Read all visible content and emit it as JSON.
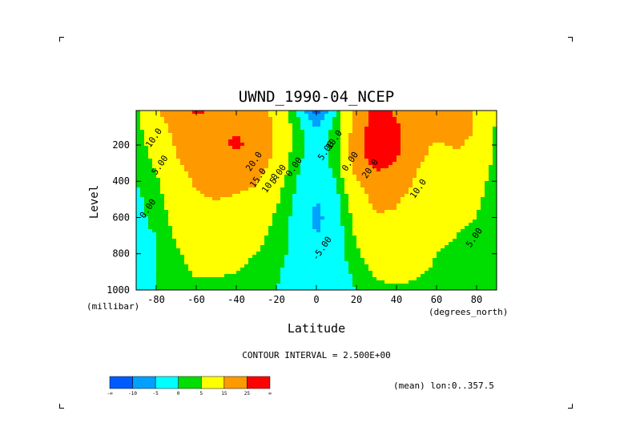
{
  "chart_data": {
    "type": "heatmap",
    "title": "UWND_1990-04_NCEP",
    "xlabel": "Latitude",
    "ylabel": "Level",
    "x_units": "(degrees_north)",
    "y_units": "(millibar)",
    "xlim": [
      -90,
      90
    ],
    "ylim": [
      1000,
      10
    ],
    "x_ticks": [
      "-80",
      "-60",
      "-40",
      "-20",
      "0",
      "20",
      "40",
      "60",
      "80"
    ],
    "y_ticks": [
      "200",
      "400",
      "600",
      "800",
      "1000"
    ],
    "contour_interval_text": "CONTOUR INTERVAL = 2.500E+00",
    "mean_text": "(mean) lon:0..357.5",
    "legend": {
      "labels": [
        "-∞",
        "-10",
        "-5",
        "0",
        "5",
        "15",
        "25",
        "∞"
      ],
      "colors": [
        "#005aff",
        "#00a0ff",
        "#00ffff",
        "#00dd00",
        "#ffff00",
        "#ff9900",
        "#ff0000"
      ]
    },
    "contour_labels": [
      {
        "text": "10.0",
        "lat": -80,
        "lev": 170
      },
      {
        "text": "5.00",
        "lat": -77,
        "lev": 320
      },
      {
        "text": "0.00",
        "lat": -83,
        "lev": 560
      },
      {
        "text": "20.0",
        "lat": -30,
        "lev": 300
      },
      {
        "text": "15.0",
        "lat": -28,
        "lev": 390
      },
      {
        "text": "10.0",
        "lat": -22,
        "lev": 420
      },
      {
        "text": "5.00",
        "lat": -18,
        "lev": 370
      },
      {
        "text": "0.00",
        "lat": -10,
        "lev": 330
      },
      {
        "text": "-5.00",
        "lat": 4,
        "lev": 780
      },
      {
        "text": "10.0",
        "lat": 10,
        "lev": 180
      },
      {
        "text": "5.00",
        "lat": 6,
        "lev": 240
      },
      {
        "text": "0.00",
        "lat": 18,
        "lev": 300
      },
      {
        "text": "20.0",
        "lat": 28,
        "lev": 340
      },
      {
        "text": "10.0",
        "lat": 52,
        "lev": 450
      },
      {
        "text": "5.00",
        "lat": 80,
        "lev": 720
      }
    ],
    "wind_field_m_per_s": {
      "lat": [
        -90,
        -80,
        -70,
        -60,
        -50,
        -40,
        -30,
        -20,
        -10,
        0,
        10,
        20,
        30,
        40,
        50,
        60,
        70,
        80,
        90
      ],
      "lev": [
        10,
        100,
        200,
        300,
        400,
        500,
        600,
        700,
        800,
        900,
        1000
      ],
      "u": [
        [
          4,
          14,
          22,
          26,
          24,
          22,
          18,
          12,
          0,
          -12,
          0,
          18,
          28,
          24,
          20,
          22,
          24,
          14,
          4
        ],
        [
          3,
          10,
          18,
          22,
          24,
          24,
          22,
          14,
          2,
          -5,
          2,
          20,
          30,
          26,
          20,
          18,
          22,
          14,
          4
        ],
        [
          2,
          8,
          16,
          20,
          24,
          26,
          24,
          14,
          2,
          -3,
          2,
          22,
          32,
          28,
          18,
          14,
          16,
          12,
          4
        ],
        [
          1,
          6,
          14,
          18,
          22,
          22,
          20,
          12,
          1,
          -3,
          2,
          20,
          28,
          24,
          16,
          12,
          12,
          10,
          3
        ],
        [
          0,
          4,
          12,
          16,
          18,
          18,
          16,
          8,
          0,
          -4,
          0,
          14,
          22,
          20,
          14,
          10,
          10,
          8,
          2
        ],
        [
          -1,
          2,
          10,
          14,
          15,
          14,
          12,
          6,
          -1,
          -5,
          -2,
          10,
          18,
          16,
          12,
          8,
          8,
          6,
          2
        ],
        [
          -1,
          1,
          8,
          12,
          12,
          11,
          9,
          4,
          -2,
          -6,
          -3,
          8,
          14,
          14,
          10,
          7,
          6,
          5,
          2
        ],
        [
          -1,
          0,
          6,
          10,
          10,
          9,
          7,
          3,
          -2,
          -5,
          -3,
          6,
          11,
          11,
          9,
          6,
          5,
          4,
          2
        ],
        [
          -1,
          0,
          4,
          8,
          8,
          7,
          5,
          2,
          -2,
          -5,
          -3,
          4,
          9,
          10,
          8,
          5,
          4,
          3,
          1
        ],
        [
          -1,
          0,
          2,
          6,
          6,
          5,
          3,
          1,
          -3,
          -4,
          -4,
          2,
          6,
          8,
          6,
          4,
          3,
          2,
          1
        ],
        [
          -1,
          0,
          0,
          3,
          3,
          2,
          1,
          0,
          -3,
          -3,
          -3,
          0,
          3,
          4,
          3,
          2,
          1,
          1,
          0
        ]
      ]
    }
  }
}
